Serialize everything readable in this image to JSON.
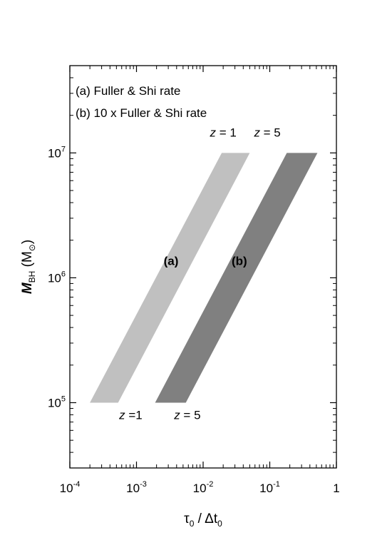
{
  "chart_data": {
    "type": "area",
    "xscale": "log",
    "yscale": "log",
    "xlim": [
      0.0001,
      1
    ],
    "ylim": [
      30000,
      50000000
    ],
    "grid": false,
    "xlabel": {
      "main": "τ",
      "sub0": "0",
      "mid": " / Δt",
      "sub1": "0"
    },
    "ylabel": {
      "main": "M",
      "sub": "BH",
      "unit": "(M",
      "sun": "⊙",
      "close": ")"
    },
    "xticks": [
      {
        "value": 0.0001,
        "base": "10",
        "exp": "-4"
      },
      {
        "value": 0.001,
        "base": "10",
        "exp": "-3"
      },
      {
        "value": 0.01,
        "base": "10",
        "exp": "-2"
      },
      {
        "value": 0.1,
        "base": "10",
        "exp": "-1"
      },
      {
        "value": 1,
        "base": "1",
        "exp": ""
      }
    ],
    "yticks": [
      {
        "value": 100000,
        "base": "10",
        "exp": "5"
      },
      {
        "value": 1000000,
        "base": "10",
        "exp": "6"
      },
      {
        "value": 10000000,
        "base": "10",
        "exp": "7"
      }
    ],
    "legend": {
      "placement": "top-left",
      "entries": [
        "(a) Fuller & Shi rate",
        "(b) 10 x Fuller & Shi rate"
      ]
    },
    "series": [
      {
        "label": "(a)",
        "color": "#c0c0c0",
        "vertices": [
          [
            0.0002,
            100000
          ],
          [
            0.00053,
            100000
          ],
          [
            0.05,
            10000000
          ],
          [
            0.019,
            10000000
          ]
        ],
        "label_pos": [
          0.0033,
          1000000
        ]
      },
      {
        "label": "(b)",
        "color": "#808080",
        "vertices": [
          [
            0.0019,
            100000
          ],
          [
            0.0055,
            100000
          ],
          [
            0.52,
            10000000
          ],
          [
            0.18,
            10000000
          ]
        ],
        "label_pos": [
          0.035,
          1000000
        ]
      }
    ],
    "annotations": [
      {
        "var": "z",
        "eq": " = 1",
        "x": 0.02,
        "y": 13500000
      },
      {
        "var": "z",
        "eq": " = 5",
        "x": 0.092,
        "y": 13500000
      },
      {
        "var": "z",
        "eq": " =1",
        "x": 0.00082,
        "y": 74000
      },
      {
        "var": "z",
        "eq": " = 5",
        "x": 0.0058,
        "y": 74000
      }
    ]
  }
}
